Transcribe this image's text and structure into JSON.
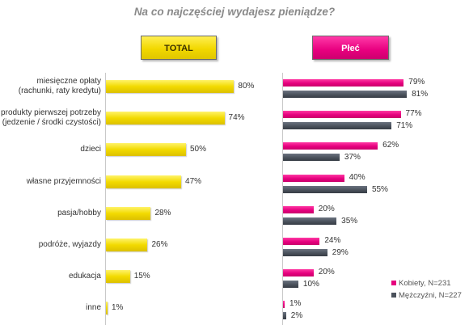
{
  "title": "Na co najczęściej wydajesz pieniądze?",
  "colors": {
    "total": "#f2d800",
    "kobiety": "#e6007e",
    "mezczyzni": "#4b525c"
  },
  "chart_data": {
    "type": "bar",
    "orientation": "horizontal",
    "title": "Na co najczęściej wydajesz pieniądze?",
    "panels": [
      "TOTAL",
      "Płeć"
    ],
    "categories": [
      [
        "miesięczne opłaty",
        "(rachunki, raty kredytu)"
      ],
      [
        "produkty pierwszej potrzeby",
        "(jedzenie / środki czystości)"
      ],
      [
        "dzieci"
      ],
      [
        "własne przyjemności"
      ],
      [
        "pasja/hobby"
      ],
      [
        "podróże, wyjazdy"
      ],
      [
        "edukacja"
      ],
      [
        "inne"
      ]
    ],
    "series": [
      {
        "name": "TOTAL",
        "panel": "TOTAL",
        "values": [
          80,
          74,
          50,
          47,
          28,
          26,
          15,
          1
        ]
      },
      {
        "name": "Kobiety, N=231",
        "panel": "Płeć",
        "values": [
          79,
          77,
          62,
          40,
          20,
          24,
          20,
          1
        ]
      },
      {
        "name": "Mężczyźni, N=227",
        "panel": "Płeć",
        "values": [
          81,
          71,
          37,
          55,
          35,
          29,
          10,
          2
        ]
      }
    ],
    "value_suffix": "%",
    "xlim": [
      0,
      100
    ],
    "legend_position": "bottom-right",
    "grid": false
  }
}
